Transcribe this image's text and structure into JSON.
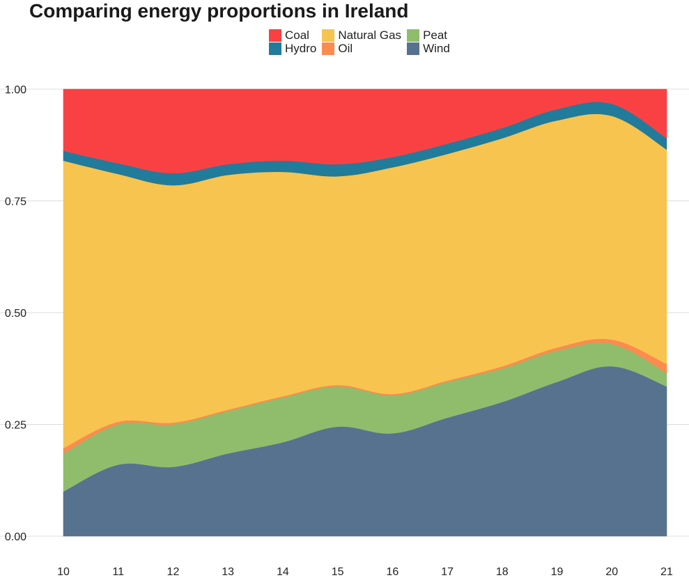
{
  "title": "Comparing energy proportions in Ireland",
  "chart_data": {
    "type": "area",
    "stacked": true,
    "normalized": true,
    "title": "Comparing energy proportions in Ireland",
    "xlabel": "",
    "ylabel": "",
    "x": [
      10,
      11,
      12,
      13,
      14,
      15,
      16,
      17,
      18,
      19,
      20,
      21
    ],
    "xlim": [
      10,
      21
    ],
    "ylim": [
      0,
      1
    ],
    "x_ticks": [
      "10",
      "11",
      "12",
      "13",
      "14",
      "15",
      "16",
      "17",
      "18",
      "19",
      "20",
      "21"
    ],
    "y_ticks": [
      "0.00",
      "0.25",
      "0.50",
      "0.75",
      "1.00"
    ],
    "legend_position": "top",
    "grid": "horizontal",
    "series": [
      {
        "name": "Wind",
        "color": "#57728f",
        "values": [
          0.1,
          0.16,
          0.155,
          0.185,
          0.21,
          0.245,
          0.23,
          0.265,
          0.3,
          0.345,
          0.38,
          0.335
        ]
      },
      {
        "name": "Peat",
        "color": "#90bd6c",
        "values": [
          0.085,
          0.09,
          0.095,
          0.095,
          0.1,
          0.09,
          0.085,
          0.08,
          0.075,
          0.07,
          0.05,
          0.03
        ]
      },
      {
        "name": "Oil",
        "color": "#fb8b4e",
        "values": [
          0.012,
          0.006,
          0.004,
          0.003,
          0.003,
          0.003,
          0.003,
          0.003,
          0.005,
          0.007,
          0.01,
          0.02
        ]
      },
      {
        "name": "Natural Gas",
        "color": "#f7c450",
        "values": [
          0.643,
          0.554,
          0.531,
          0.525,
          0.502,
          0.467,
          0.507,
          0.507,
          0.51,
          0.508,
          0.5,
          0.48
        ]
      },
      {
        "name": "Hydro",
        "color": "#217b9b",
        "values": [
          0.022,
          0.024,
          0.027,
          0.024,
          0.025,
          0.027,
          0.023,
          0.023,
          0.023,
          0.025,
          0.027,
          0.025
        ]
      },
      {
        "name": "Coal",
        "color": "#f94144",
        "values": [
          0.138,
          0.166,
          0.188,
          0.168,
          0.16,
          0.168,
          0.152,
          0.122,
          0.087,
          0.045,
          0.033,
          0.11
        ]
      }
    ]
  },
  "legend": [
    {
      "label": "Coal",
      "color": "#f94144"
    },
    {
      "label": "Natural Gas",
      "color": "#f7c450"
    },
    {
      "label": "Peat",
      "color": "#90bd6c"
    },
    {
      "label": "Hydro",
      "color": "#217b9b"
    },
    {
      "label": "Oil",
      "color": "#fb8b4e"
    },
    {
      "label": "Wind",
      "color": "#57728f"
    }
  ]
}
